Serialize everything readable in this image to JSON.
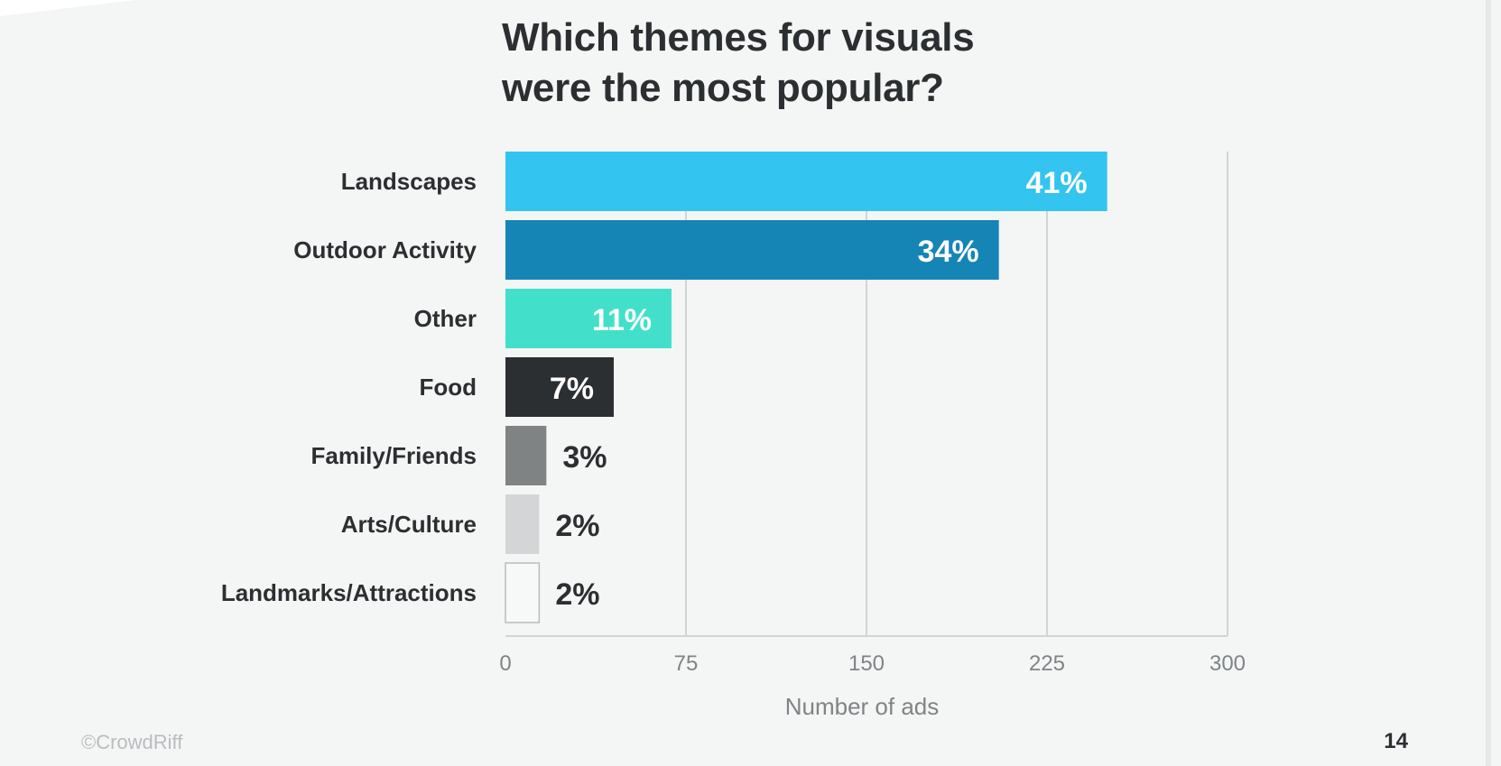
{
  "title_line1": "Which themes for visuals",
  "title_line2": "were the most popular?",
  "copyright": "©CrowdRiff",
  "page_number": "14",
  "chart_data": {
    "type": "bar",
    "orientation": "horizontal",
    "title": "Which themes for visuals were the most popular?",
    "xlabel": "Number of ads",
    "ylabel": "",
    "xlim": [
      0,
      300
    ],
    "xticks": [
      0,
      75,
      150,
      225,
      300
    ],
    "grid": "vertical",
    "categories": [
      "Landscapes",
      "Outdoor Activity",
      "Other",
      "Food",
      "Family/Friends",
      "Arts/Culture",
      "Landmarks/Attractions"
    ],
    "values": [
      250,
      205,
      69,
      45,
      17,
      14,
      14
    ],
    "labels": [
      "41%",
      "34%",
      "11%",
      "7%",
      "3%",
      "2%",
      "2%"
    ],
    "colors": [
      "#33c4f0",
      "#1585b6",
      "#42e0ca",
      "#2c2f31",
      "#808384",
      "#d4d5d6",
      "#f7f8f8"
    ],
    "label_colors": [
      "#ffffff",
      "#ffffff",
      "#ffffff",
      "#ffffff",
      "#2c2f31",
      "#2c2f31",
      "#2c2f31"
    ]
  }
}
